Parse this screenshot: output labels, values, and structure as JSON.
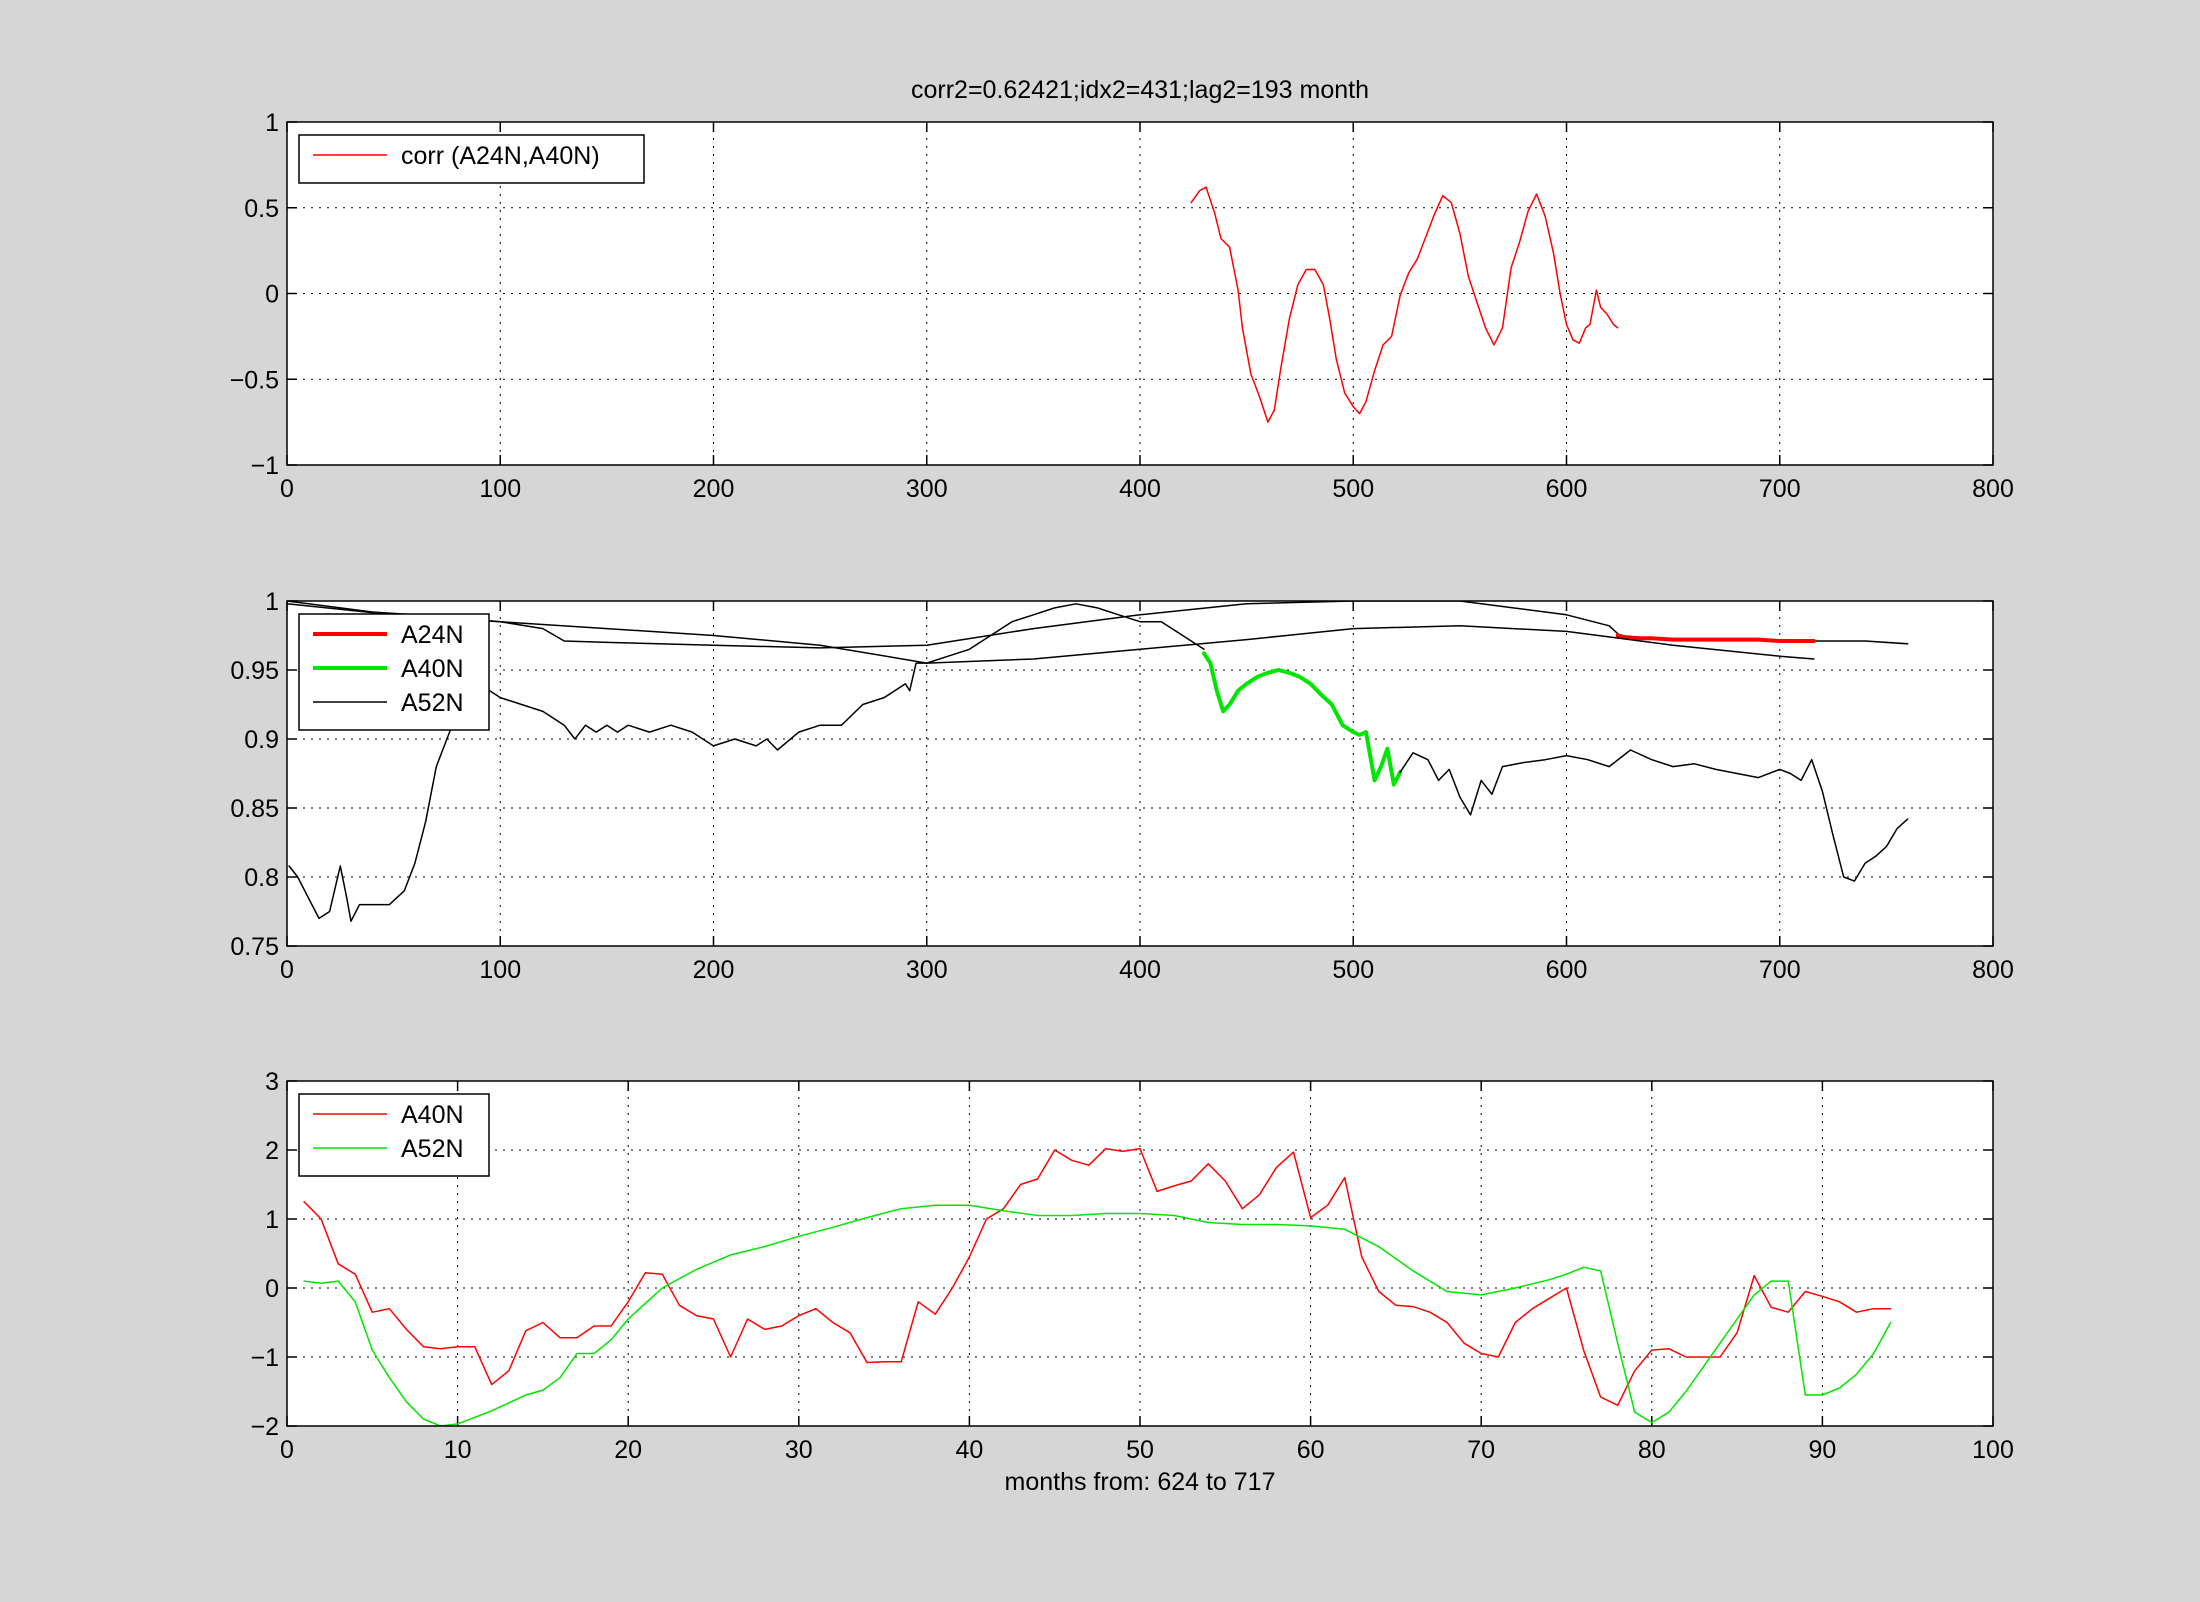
{
  "colors": {
    "background": "#d6d6d6",
    "plot": "#ffffff",
    "red": "#ff0000",
    "green": "#00e600",
    "black": "#000000"
  },
  "chart_data": [
    {
      "type": "line",
      "title": "corr2=0.62421;idx2=431;lag2=193 month",
      "xlabel": "",
      "ylabel": "",
      "xlim": [
        0,
        800
      ],
      "ylim": [
        -1,
        1
      ],
      "xticks": [
        0,
        100,
        200,
        300,
        400,
        500,
        600,
        700,
        800
      ],
      "yticks": [
        -1,
        -0.5,
        0,
        0.5,
        1
      ],
      "ytick_labels": [
        "−1",
        "−0.5",
        "0",
        "0.5",
        "1"
      ],
      "grid": true,
      "legend_position": "top-left",
      "series": [
        {
          "name": "corr (A24N,A40N)",
          "color": "#ff0000",
          "width": 1.5,
          "x": [
            424,
            428,
            431,
            435,
            438,
            442,
            446,
            448,
            452,
            456,
            460,
            463,
            466,
            470,
            474,
            478,
            482,
            486,
            489,
            492,
            496,
            500,
            503,
            506,
            510,
            514,
            518,
            522,
            526,
            530,
            534,
            538,
            542,
            546,
            550,
            554,
            558,
            562,
            566,
            570,
            574,
            578,
            582,
            586,
            590,
            594,
            597,
            600,
            603,
            606,
            609,
            611,
            614,
            616,
            619,
            622,
            624
          ],
          "y": [
            0.53,
            0.6,
            0.62,
            0.47,
            0.32,
            0.27,
            0.02,
            -0.2,
            -0.47,
            -0.6,
            -0.75,
            -0.68,
            -0.44,
            -0.15,
            0.05,
            0.14,
            0.14,
            0.05,
            -0.15,
            -0.38,
            -0.58,
            -0.66,
            -0.7,
            -0.63,
            -0.45,
            -0.3,
            -0.25,
            -0.01,
            0.12,
            0.2,
            0.33,
            0.46,
            0.57,
            0.53,
            0.35,
            0.1,
            -0.05,
            -0.2,
            -0.3,
            -0.2,
            0.15,
            0.3,
            0.48,
            0.58,
            0.45,
            0.23,
            0.0,
            -0.18,
            -0.27,
            -0.29,
            -0.2,
            -0.18,
            0.02,
            -0.08,
            -0.12,
            -0.18,
            -0.2
          ]
        }
      ]
    },
    {
      "type": "line",
      "title": "",
      "xlabel": "",
      "ylabel": "",
      "xlim": [
        0,
        800
      ],
      "ylim": [
        0.75,
        1
      ],
      "xticks": [
        0,
        100,
        200,
        300,
        400,
        500,
        600,
        700,
        800
      ],
      "yticks": [
        0.75,
        0.8,
        0.85,
        0.9,
        0.95,
        1
      ],
      "ytick_labels": [
        "0.75",
        "0.8",
        "0.85",
        "0.9",
        "0.95",
        "1"
      ],
      "grid": true,
      "legend_position": "top-left",
      "series": [
        {
          "name": "A52N",
          "color": "#000000",
          "width": 1.5,
          "x": [
            1,
            5,
            10,
            15,
            20,
            25,
            28,
            30,
            34,
            38,
            42,
            48,
            55,
            60,
            65,
            70,
            75,
            80,
            85,
            90,
            100,
            110,
            120,
            130,
            135,
            140,
            145,
            150,
            155,
            160,
            170,
            180,
            190,
            195,
            200,
            210,
            220,
            225,
            230,
            240,
            250,
            260,
            270,
            280,
            285,
            290,
            292,
            295,
            300,
            310,
            320,
            330,
            340,
            350,
            360,
            370,
            380,
            390,
            400,
            410,
            415,
            420,
            425,
            430
          ],
          "y": [
            0.808,
            0.8,
            0.785,
            0.77,
            0.775,
            0.808,
            0.785,
            0.768,
            0.78,
            0.78,
            0.78,
            0.78,
            0.79,
            0.81,
            0.84,
            0.88,
            0.9,
            0.92,
            0.93,
            0.94,
            0.93,
            0.925,
            0.92,
            0.91,
            0.9,
            0.91,
            0.905,
            0.91,
            0.905,
            0.91,
            0.905,
            0.91,
            0.905,
            0.9,
            0.895,
            0.9,
            0.895,
            0.9,
            0.892,
            0.905,
            0.91,
            0.91,
            0.925,
            0.93,
            0.935,
            0.94,
            0.935,
            0.955,
            0.955,
            0.96,
            0.965,
            0.975,
            0.985,
            0.99,
            0.995,
            0.998,
            0.995,
            0.99,
            0.985,
            0.985,
            0.98,
            0.975,
            0.97,
            0.965
          ]
        },
        {
          "name": "A40N",
          "color": "#00e600",
          "width": 4,
          "x": [
            430,
            433,
            436,
            439,
            442,
            446,
            450,
            455,
            460,
            465,
            470,
            475,
            480,
            485,
            490,
            495,
            500,
            503,
            506,
            510,
            513,
            516,
            519,
            522
          ],
          "y": [
            0.962,
            0.955,
            0.935,
            0.92,
            0.925,
            0.935,
            0.94,
            0.945,
            0.948,
            0.95,
            0.948,
            0.945,
            0.94,
            0.932,
            0.925,
            0.91,
            0.905,
            0.903,
            0.905,
            0.87,
            0.88,
            0.893,
            0.867,
            0.876
          ]
        },
        {
          "name": "",
          "color": "#000000",
          "width": 1.5,
          "x": [
            522,
            528,
            535,
            540,
            545,
            550,
            555,
            560,
            565,
            570,
            580,
            590,
            600,
            610,
            620,
            630,
            640,
            650,
            660,
            670,
            680,
            690,
            700,
            705,
            710,
            715,
            720,
            725,
            730,
            735,
            740,
            745,
            750,
            755,
            760
          ],
          "y": [
            0.876,
            0.89,
            0.885,
            0.87,
            0.878,
            0.858,
            0.845,
            0.87,
            0.86,
            0.88,
            0.883,
            0.885,
            0.888,
            0.885,
            0.88,
            0.892,
            0.885,
            0.88,
            0.882,
            0.878,
            0.875,
            0.872,
            0.878,
            0.875,
            0.87,
            0.885,
            0.862,
            0.83,
            0.8,
            0.797,
            0.81,
            0.815,
            0.822,
            0.835,
            0.842
          ]
        },
        {
          "name": "",
          "color": "#000000",
          "width": 1.5,
          "x": [
            0,
            20,
            40,
            60,
            80,
            100,
            120,
            130,
            150,
            200,
            250,
            300,
            350,
            400,
            450,
            500,
            550,
            600,
            620,
            625,
            640,
            680,
            716,
            720,
            740,
            760
          ],
          "y": [
            1.0,
            0.996,
            0.992,
            0.99,
            0.988,
            0.985,
            0.98,
            0.971,
            0.97,
            0.968,
            0.966,
            0.968,
            0.98,
            0.99,
            0.998,
            1.0,
            1.0,
            0.99,
            0.982,
            0.975,
            0.973,
            0.972,
            0.971,
            0.971,
            0.971,
            0.969
          ]
        },
        {
          "name": "A24N",
          "color": "#ff0000",
          "width": 4,
          "x": [
            624,
            630,
            640,
            650,
            660,
            670,
            680,
            690,
            700,
            710,
            716
          ],
          "y": [
            0.975,
            0.973,
            0.973,
            0.972,
            0.972,
            0.972,
            0.972,
            0.972,
            0.971,
            0.971,
            0.971
          ]
        },
        {
          "name": "",
          "color": "#000000",
          "width": 1.5,
          "x": [
            0,
            50,
            100,
            150,
            200,
            250,
            300,
            350,
            400,
            450,
            500,
            550,
            600,
            650,
            700,
            716
          ],
          "y": [
            0.998,
            0.99,
            0.985,
            0.98,
            0.975,
            0.968,
            0.955,
            0.958,
            0.965,
            0.972,
            0.98,
            0.982,
            0.978,
            0.968,
            0.96,
            0.958
          ]
        }
      ]
    },
    {
      "type": "line",
      "title": "",
      "xlabel": "months from: 624 to 717",
      "ylabel": "",
      "xlim": [
        0,
        100
      ],
      "ylim": [
        -2,
        3
      ],
      "xticks": [
        0,
        10,
        20,
        30,
        40,
        50,
        60,
        70,
        80,
        90,
        100
      ],
      "yticks": [
        -2,
        -1,
        0,
        1,
        2,
        3
      ],
      "ytick_labels": [
        "−2",
        "−1",
        "0",
        "1",
        "2",
        "3"
      ],
      "grid": true,
      "legend_position": "top-left",
      "series": [
        {
          "name": "A40N",
          "color": "#ff0000",
          "width": 1.5,
          "x": [
            1,
            2,
            3,
            4,
            5,
            6,
            7,
            8,
            9,
            10,
            11,
            12,
            13,
            14,
            15,
            16,
            17,
            18,
            19,
            20,
            21,
            22,
            23,
            24,
            25,
            26,
            27,
            28,
            29,
            30,
            31,
            32,
            33,
            34,
            35,
            36,
            37,
            38,
            39,
            40,
            41,
            42,
            43,
            44,
            45,
            46,
            47,
            48,
            49,
            50,
            51,
            52,
            53,
            54,
            55,
            56,
            57,
            58,
            59,
            60,
            61,
            62,
            63,
            64,
            65,
            66,
            67,
            68,
            69,
            70,
            71,
            72,
            73,
            74,
            75,
            76,
            77,
            78,
            79,
            80,
            81,
            82,
            83,
            84,
            85,
            86,
            87,
            88,
            89,
            90,
            91,
            92,
            93,
            94
          ],
          "y": [
            1.25,
            1.0,
            0.35,
            0.2,
            -0.35,
            -0.3,
            -0.6,
            -0.85,
            -0.88,
            -0.85,
            -0.85,
            -1.4,
            -1.2,
            -0.62,
            -0.5,
            -0.72,
            -0.72,
            -0.55,
            -0.55,
            -0.2,
            0.22,
            0.2,
            -0.25,
            -0.4,
            -0.45,
            -1.0,
            -0.45,
            -0.6,
            -0.55,
            -0.4,
            -0.3,
            -0.5,
            -0.65,
            -1.08,
            -1.07,
            -1.07,
            -0.2,
            -0.38,
            0.0,
            0.45,
            1.0,
            1.15,
            1.5,
            1.58,
            2.0,
            1.85,
            1.78,
            2.02,
            1.98,
            2.02,
            1.4,
            1.48,
            1.55,
            1.8,
            1.55,
            1.15,
            1.35,
            1.75,
            1.97,
            1.02,
            1.2,
            1.6,
            0.45,
            -0.05,
            -0.25,
            -0.27,
            -0.35,
            -0.5,
            -0.8,
            -0.95,
            -1.0,
            -0.5,
            -0.3,
            -0.15,
            0.0,
            -0.9,
            -1.58,
            -1.7,
            -1.2,
            -0.9,
            -0.88,
            -1.0,
            -1.0,
            -1.0,
            -0.65,
            0.18,
            -0.28,
            -0.35,
            -0.05,
            -0.12,
            -0.2,
            -0.35,
            -0.3,
            -0.3
          ]
        },
        {
          "name": "A52N",
          "color": "#00e600",
          "width": 1.5,
          "x": [
            1,
            2,
            3,
            4,
            5,
            6,
            7,
            8,
            9,
            10,
            12,
            14,
            15,
            16,
            17,
            18,
            19,
            20,
            22,
            24,
            26,
            28,
            30,
            32,
            34,
            36,
            38,
            40,
            42,
            44,
            46,
            48,
            50,
            52,
            54,
            56,
            58,
            60,
            62,
            64,
            66,
            68,
            70,
            72,
            74,
            75,
            76,
            77,
            78,
            79,
            80,
            81,
            82,
            83,
            84,
            85,
            86,
            87,
            88,
            89,
            90,
            91,
            92,
            93,
            94
          ],
          "y": [
            0.1,
            0.07,
            0.1,
            -0.2,
            -0.9,
            -1.3,
            -1.65,
            -1.9,
            -2.0,
            -1.97,
            -1.78,
            -1.55,
            -1.48,
            -1.3,
            -0.95,
            -0.95,
            -0.75,
            -0.45,
            0.0,
            0.27,
            0.48,
            0.6,
            0.75,
            0.88,
            1.02,
            1.15,
            1.2,
            1.2,
            1.12,
            1.05,
            1.05,
            1.08,
            1.08,
            1.05,
            0.95,
            0.92,
            0.92,
            0.9,
            0.85,
            0.6,
            0.25,
            -0.05,
            -0.1,
            0.0,
            0.12,
            0.2,
            0.3,
            0.25,
            -0.8,
            -1.8,
            -1.95,
            -1.8,
            -1.5,
            -1.15,
            -0.8,
            -0.45,
            -0.1,
            0.1,
            0.1,
            -1.55,
            -1.55,
            -1.45,
            -1.25,
            -0.95,
            -0.5
          ]
        }
      ]
    }
  ]
}
